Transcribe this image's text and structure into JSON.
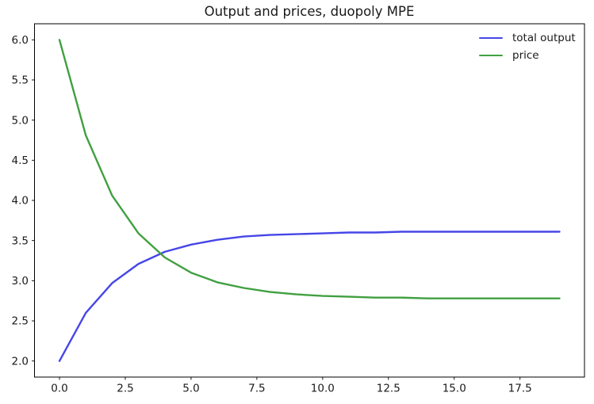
{
  "chart_data": {
    "type": "line",
    "title": "Output and prices, duopoly MPE",
    "xlabel": "",
    "ylabel": "",
    "x": [
      0,
      1,
      2,
      3,
      4,
      5,
      6,
      7,
      8,
      9,
      10,
      11,
      12,
      13,
      14,
      15,
      16,
      17,
      18,
      19
    ],
    "series": [
      {
        "name": "total output",
        "color": "#4646e8",
        "values": [
          2.0,
          2.6,
          2.97,
          3.21,
          3.36,
          3.45,
          3.51,
          3.55,
          3.57,
          3.58,
          3.59,
          3.6,
          3.6,
          3.61,
          3.61,
          3.61,
          3.61,
          3.61,
          3.61,
          3.61
        ]
      },
      {
        "name": "price",
        "color": "#40a040",
        "values": [
          6.0,
          4.81,
          4.06,
          3.59,
          3.29,
          3.1,
          2.98,
          2.91,
          2.86,
          2.83,
          2.81,
          2.8,
          2.79,
          2.79,
          2.78,
          2.78,
          2.78,
          2.78,
          2.78,
          2.78
        ]
      }
    ],
    "xticks": {
      "values": [
        0,
        2.5,
        5,
        7.5,
        10,
        12.5,
        15,
        17.5
      ],
      "labels": [
        "0.0",
        "2.5",
        "5.0",
        "7.5",
        "10.0",
        "12.5",
        "15.0",
        "17.5"
      ]
    },
    "yticks": {
      "values": [
        2.0,
        2.5,
        3.0,
        3.5,
        4.0,
        4.5,
        5.0,
        5.5,
        6.0
      ],
      "labels": [
        "2.0",
        "2.5",
        "3.0",
        "3.5",
        "4.0",
        "4.5",
        "5.0",
        "5.5",
        "6.0"
      ]
    },
    "xlim": [
      -0.95,
      19.95
    ],
    "ylim": [
      1.8,
      6.2
    ],
    "grid": false,
    "background": "#ffffff",
    "axis_color": "#000000",
    "legend": {
      "position": "upper right",
      "frame": false,
      "entries": [
        "total output",
        "price"
      ]
    }
  }
}
